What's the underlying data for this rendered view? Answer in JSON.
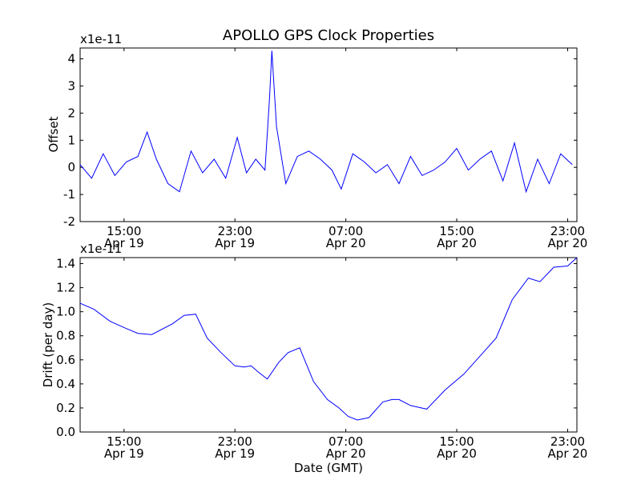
{
  "figure": {
    "title": "APOLLO GPS Clock Properties",
    "xlabel": "Date (GMT)",
    "x_tick_labels": [
      [
        "15:00",
        "Apr 19"
      ],
      [
        "23:00",
        "Apr 19"
      ],
      [
        "07:00",
        "Apr 20"
      ],
      [
        "15:00",
        "Apr 20"
      ],
      [
        "23:00",
        "Apr 20"
      ]
    ]
  },
  "chart_data": [
    {
      "type": "line",
      "ylabel": "Offset",
      "scale_label": "x1e-11",
      "xlim": [
        "2010-04-19 11:50",
        "2010-04-20 23:40"
      ],
      "ylim": [
        -2,
        4.4
      ],
      "y_ticks": [
        "-2",
        "-1",
        "0",
        "1",
        "2",
        "3",
        "4"
      ],
      "color": "#0000ff",
      "x": [
        "2010-04-19 11:50",
        "2010-04-19 12:40",
        "2010-04-19 13:30",
        "2010-04-19 14:20",
        "2010-04-19 15:10",
        "2010-04-19 16:00",
        "2010-04-19 16:40",
        "2010-04-19 17:20",
        "2010-04-19 18:10",
        "2010-04-19 19:00",
        "2010-04-19 19:50",
        "2010-04-19 20:40",
        "2010-04-19 21:30",
        "2010-04-19 22:20",
        "2010-04-19 23:10",
        "2010-04-19 23:50",
        "2010-04-20 00:30",
        "2010-04-20 01:10",
        "2010-04-20 01:30",
        "2010-04-20 01:40",
        "2010-04-20 02:00",
        "2010-04-20 02:40",
        "2010-04-20 03:30",
        "2010-04-20 04:20",
        "2010-04-20 05:10",
        "2010-04-20 06:00",
        "2010-04-20 06:40",
        "2010-04-20 07:30",
        "2010-04-20 08:20",
        "2010-04-20 09:10",
        "2010-04-20 10:00",
        "2010-04-20 10:50",
        "2010-04-20 11:40",
        "2010-04-20 12:30",
        "2010-04-20 13:20",
        "2010-04-20 14:10",
        "2010-04-20 15:00",
        "2010-04-20 15:50",
        "2010-04-20 16:40",
        "2010-04-20 17:30",
        "2010-04-20 18:20",
        "2010-04-20 19:10",
        "2010-04-20 20:00",
        "2010-04-20 20:50",
        "2010-04-20 21:40",
        "2010-04-20 22:30",
        "2010-04-20 23:20"
      ],
      "values": [
        0.1,
        -0.4,
        0.5,
        -0.3,
        0.2,
        0.4,
        1.3,
        0.3,
        -0.6,
        -0.9,
        0.6,
        -0.2,
        0.3,
        -0.4,
        1.1,
        -0.2,
        0.3,
        -0.1,
        2.6,
        4.3,
        1.5,
        -0.6,
        0.4,
        0.6,
        0.3,
        -0.1,
        -0.8,
        0.5,
        0.2,
        -0.2,
        0.1,
        -0.6,
        0.4,
        -0.3,
        -0.1,
        0.2,
        0.7,
        -0.1,
        0.3,
        0.6,
        -0.5,
        0.9,
        -0.9,
        0.3,
        -0.6,
        0.5,
        0.1
      ]
    },
    {
      "type": "line",
      "ylabel": "Drift (per day)",
      "scale_label": "x1e-11",
      "xlim": [
        "2010-04-19 11:50",
        "2010-04-20 23:40"
      ],
      "ylim": [
        0.0,
        1.45
      ],
      "y_ticks": [
        "0.0",
        "0.2",
        "0.4",
        "0.6",
        "0.8",
        "1.0",
        "1.2",
        "1.4"
      ],
      "color": "#0000ff",
      "x": [
        "2010-04-19 11:50",
        "2010-04-19 12:50",
        "2010-04-19 14:00",
        "2010-04-19 15:10",
        "2010-04-19 16:00",
        "2010-04-19 17:00",
        "2010-04-19 18:30",
        "2010-04-19 19:20",
        "2010-04-19 20:10",
        "2010-04-19 21:00",
        "2010-04-19 22:00",
        "2010-04-19 23:00",
        "2010-04-19 23:40",
        "2010-04-20 00:10",
        "2010-04-20 00:40",
        "2010-04-20 01:20",
        "2010-04-20 02:10",
        "2010-04-20 02:50",
        "2010-04-20 03:40",
        "2010-04-20 04:40",
        "2010-04-20 05:40",
        "2010-04-20 06:30",
        "2010-04-20 07:10",
        "2010-04-20 07:50",
        "2010-04-20 08:40",
        "2010-04-20 09:40",
        "2010-04-20 10:20",
        "2010-04-20 10:50",
        "2010-04-20 11:40",
        "2010-04-20 12:50",
        "2010-04-20 14:10",
        "2010-04-20 15:30",
        "2010-04-20 16:40",
        "2010-04-20 17:50",
        "2010-04-20 19:00",
        "2010-04-20 20:10",
        "2010-04-20 21:00",
        "2010-04-20 22:00",
        "2010-04-20 23:00",
        "2010-04-20 23:40"
      ],
      "values": [
        1.07,
        1.02,
        0.92,
        0.86,
        0.82,
        0.81,
        0.9,
        0.97,
        0.98,
        0.78,
        0.66,
        0.55,
        0.54,
        0.55,
        0.5,
        0.44,
        0.58,
        0.66,
        0.7,
        0.42,
        0.27,
        0.2,
        0.13,
        0.1,
        0.12,
        0.25,
        0.27,
        0.27,
        0.22,
        0.19,
        0.35,
        0.48,
        0.63,
        0.78,
        1.1,
        1.28,
        1.25,
        1.37,
        1.38,
        1.45
      ]
    }
  ]
}
